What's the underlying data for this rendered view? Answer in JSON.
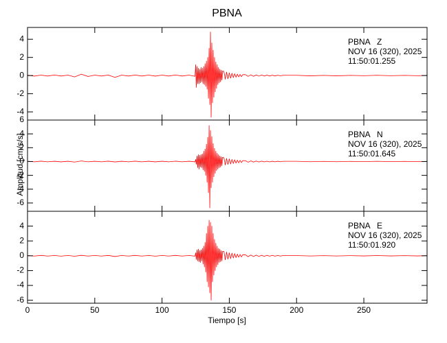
{
  "title": "PBNA",
  "ylabel": "Amplitud [cm/s/s]",
  "xlabel": "Tiempo [s]",
  "chart_data": [
    {
      "type": "line",
      "color": "#ff0000",
      "show_xtick_labels": false,
      "annotations": [
        "PBNA   Z",
        "NOV 16 (320), 2025",
        "11:50:01.255"
      ],
      "xlim": [
        0,
        297
      ],
      "xticks": [
        0,
        50,
        100,
        150,
        200,
        250
      ],
      "ylim": [
        -4.9,
        5.3
      ],
      "yticks": [
        -4,
        -2,
        0,
        2,
        4
      ],
      "x": [
        0,
        5,
        10,
        15,
        20,
        25,
        30,
        35,
        40,
        45,
        50,
        55,
        60,
        65,
        70,
        75,
        80,
        85,
        90,
        95,
        100,
        105,
        110,
        115,
        120,
        124.5,
        125,
        125.5,
        126,
        126.5,
        127,
        127.5,
        128,
        128.5,
        129,
        129.5,
        130,
        130.5,
        131,
        131.5,
        132,
        132.5,
        133,
        133.5,
        134,
        134.5,
        135,
        135.5,
        136,
        136.5,
        137,
        137.5,
        138,
        138.5,
        139,
        139.5,
        140,
        140.5,
        141,
        141.5,
        142,
        142.5,
        143,
        143.5,
        144,
        144.5,
        145,
        146,
        147,
        148,
        149,
        150,
        151,
        152,
        153,
        154,
        155,
        156,
        157,
        158,
        159,
        160,
        162,
        164,
        166,
        168,
        170,
        172,
        174,
        176,
        178,
        180,
        182,
        184,
        186,
        188,
        190,
        200,
        210,
        220,
        230,
        240,
        250,
        260,
        270,
        280,
        290,
        297
      ],
      "values": [
        0.05,
        -0.06,
        0.05,
        -0.05,
        0.06,
        -0.05,
        0.05,
        -0.15,
        0.15,
        -0.1,
        0.05,
        -0.05,
        0.06,
        -0.2,
        0.05,
        -0.05,
        0.06,
        -0.05,
        0.05,
        -0.06,
        0.05,
        -0.05,
        0.06,
        -0.05,
        0.05,
        -0.08,
        1.2,
        -1.3,
        1.0,
        -0.9,
        0.8,
        -0.9,
        0.7,
        -0.8,
        0.9,
        -0.7,
        0.8,
        -0.9,
        1.0,
        -1.0,
        1.3,
        -1.2,
        1.6,
        -1.5,
        2.0,
        -2.5,
        3.0,
        -3.2,
        4.8,
        -4.6,
        3.6,
        -3.0,
        2.8,
        -2.4,
        2.0,
        -1.8,
        1.5,
        -1.4,
        1.2,
        -1.0,
        0.9,
        -0.8,
        0.7,
        -0.7,
        0.6,
        -0.5,
        0.5,
        0.45,
        -0.4,
        0.38,
        -0.35,
        0.3,
        -0.28,
        0.25,
        -0.22,
        0.2,
        -0.18,
        0.16,
        -0.15,
        0.13,
        -0.12,
        0.1,
        0.1,
        -0.09,
        0.08,
        -0.08,
        0.07,
        -0.06,
        0.06,
        -0.05,
        0.05,
        -0.05,
        0.04,
        -0.04,
        0.04,
        -0.03,
        0.03,
        0.03,
        -0.03,
        0.02,
        -0.03,
        0.02,
        -0.02,
        0.03,
        -0.02,
        0.02,
        -0.02,
        0.02
      ]
    },
    {
      "type": "line",
      "color": "#ff0000",
      "show_xtick_labels": false,
      "annotations": [
        "PBNA   N",
        "NOV 16 (320), 2025",
        "11:50:01.645"
      ],
      "xlim": [
        0,
        297
      ],
      "xticks": [
        0,
        50,
        100,
        150,
        200,
        250
      ],
      "ylim": [
        -7.2,
        6
      ],
      "yticks": [
        -6,
        -4,
        -2,
        0,
        2,
        4,
        6
      ],
      "x": [
        0,
        5,
        10,
        15,
        20,
        25,
        30,
        35,
        40,
        45,
        50,
        55,
        60,
        65,
        70,
        75,
        80,
        85,
        90,
        95,
        100,
        105,
        110,
        115,
        120,
        124.5,
        125,
        125.5,
        126,
        126.5,
        127,
        127.5,
        128,
        128.5,
        129,
        129.5,
        130,
        130.5,
        131,
        131.5,
        132,
        132.5,
        133,
        133.5,
        134,
        134.5,
        135,
        135.5,
        136,
        136.5,
        137,
        137.5,
        138,
        138.5,
        139,
        139.5,
        140,
        140.5,
        141,
        141.5,
        142,
        142.5,
        143,
        143.5,
        144,
        144.5,
        145,
        146,
        147,
        148,
        149,
        150,
        151,
        152,
        153,
        154,
        155,
        156,
        157,
        158,
        159,
        160,
        162,
        164,
        166,
        168,
        170,
        172,
        174,
        176,
        178,
        180,
        182,
        184,
        186,
        188,
        190,
        200,
        210,
        220,
        230,
        240,
        250,
        260,
        270,
        280,
        290,
        297
      ],
      "values": [
        0.04,
        -0.04,
        0.05,
        -0.04,
        0.04,
        -0.05,
        0.04,
        -0.08,
        0.08,
        -0.04,
        0.04,
        -0.04,
        0.05,
        -0.06,
        0.04,
        -0.04,
        0.05,
        -0.04,
        0.04,
        -0.05,
        0.04,
        -0.04,
        0.05,
        -0.04,
        0.04,
        -0.05,
        0.3,
        -0.4,
        0.8,
        -0.9,
        1.0,
        -1.1,
        0.9,
        -0.8,
        1.0,
        -0.9,
        1.1,
        -1.2,
        1.5,
        -1.4,
        1.8,
        -2.0,
        2.5,
        -3.0,
        3.5,
        -4.5,
        5.2,
        -6.7,
        4.5,
        -3.8,
        3.6,
        -3.0,
        2.6,
        -2.2,
        1.9,
        -1.7,
        1.5,
        -1.3,
        1.2,
        -1.1,
        1.0,
        -0.9,
        0.8,
        -0.8,
        0.7,
        -0.6,
        0.6,
        0.55,
        -0.5,
        0.45,
        -0.42,
        0.38,
        -0.35,
        0.3,
        -0.28,
        0.25,
        -0.22,
        0.2,
        -0.18,
        0.16,
        -0.15,
        0.13,
        0.12,
        -0.1,
        0.09,
        -0.08,
        0.07,
        -0.07,
        0.06,
        -0.05,
        0.05,
        -0.05,
        0.04,
        -0.04,
        0.04,
        -0.03,
        0.03,
        0.03,
        -0.03,
        0.02,
        -0.03,
        0.02,
        -0.02,
        0.03,
        -0.02,
        0.02,
        -0.02,
        0.02
      ]
    },
    {
      "type": "line",
      "color": "#ff0000",
      "show_xtick_labels": true,
      "annotations": [
        "PBNA   E",
        "NOV 16 (320), 2025",
        "11:50:01.920"
      ],
      "xlim": [
        0,
        297
      ],
      "xticks": [
        0,
        50,
        100,
        150,
        200,
        250
      ],
      "ylim": [
        -6.4,
        6
      ],
      "yticks": [
        -6,
        -4,
        -2,
        0,
        2,
        4
      ],
      "x": [
        0,
        5,
        10,
        15,
        20,
        25,
        30,
        35,
        40,
        45,
        50,
        55,
        60,
        65,
        70,
        75,
        80,
        85,
        90,
        95,
        100,
        105,
        110,
        115,
        120,
        124.5,
        125,
        125.5,
        126,
        126.5,
        127,
        127.5,
        128,
        128.5,
        129,
        129.5,
        130,
        130.5,
        131,
        131.5,
        132,
        132.5,
        133,
        133.5,
        134,
        134.5,
        135,
        135.5,
        136,
        136.5,
        137,
        137.5,
        138,
        138.5,
        139,
        139.5,
        140,
        140.5,
        141,
        141.5,
        142,
        142.5,
        143,
        143.5,
        144,
        144.5,
        145,
        146,
        147,
        148,
        149,
        150,
        151,
        152,
        153,
        154,
        155,
        156,
        157,
        158,
        159,
        160,
        162,
        164,
        166,
        168,
        170,
        172,
        174,
        176,
        178,
        180,
        182,
        184,
        186,
        188,
        190,
        200,
        210,
        220,
        230,
        240,
        250,
        260,
        270,
        280,
        290,
        297
      ],
      "values": [
        0.04,
        -0.04,
        0.05,
        -0.04,
        0.04,
        -0.05,
        0.04,
        -0.06,
        0.06,
        -0.04,
        0.04,
        -0.04,
        0.05,
        -0.1,
        0.04,
        -0.04,
        0.05,
        -0.04,
        0.04,
        -0.05,
        0.04,
        -0.04,
        0.05,
        -0.04,
        0.04,
        -0.05,
        0.4,
        -0.5,
        0.8,
        -0.7,
        0.9,
        -0.8,
        0.7,
        -0.9,
        0.8,
        -0.7,
        1.0,
        -1.1,
        1.3,
        -1.5,
        1.8,
        -2.2,
        3.0,
        -3.5,
        4.0,
        -4.2,
        4.8,
        -5.0,
        4.5,
        -6.0,
        4.0,
        -3.5,
        3.0,
        -2.6,
        2.2,
        -2.0,
        1.7,
        -1.5,
        1.3,
        -1.2,
        1.0,
        -0.9,
        0.9,
        -0.8,
        0.7,
        -0.7,
        0.6,
        0.6,
        -0.55,
        0.5,
        -0.45,
        0.4,
        -0.38,
        0.35,
        -0.3,
        0.28,
        -0.25,
        0.22,
        -0.2,
        0.18,
        -0.16,
        0.14,
        0.13,
        -0.12,
        0.1,
        -0.1,
        0.09,
        -0.08,
        0.07,
        -0.07,
        0.06,
        -0.05,
        0.05,
        -0.05,
        0.04,
        -0.04,
        0.03,
        0.03,
        -0.03,
        0.02,
        -0.03,
        0.02,
        -0.02,
        0.03,
        -0.02,
        0.02,
        -0.02,
        0.02
      ]
    }
  ]
}
